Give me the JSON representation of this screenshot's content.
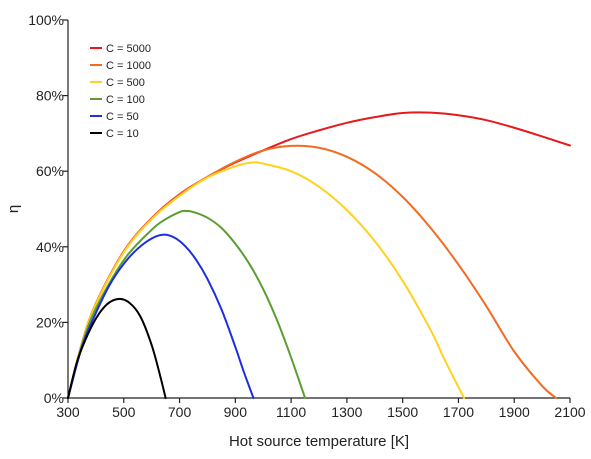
{
  "chart_data": {
    "type": "line",
    "title": "",
    "xlabel": "Hot source temperature [K]",
    "ylabel": "η",
    "xlim": [
      300,
      2100
    ],
    "ylim": [
      0,
      100
    ],
    "x_ticks": [
      "300",
      "500",
      "700",
      "900",
      "1100",
      "1300",
      "1500",
      "1700",
      "1900",
      "2100"
    ],
    "y_ticks": [
      "0%",
      "20%",
      "40%",
      "60%",
      "80%",
      "100%"
    ],
    "grid": false,
    "legend_position": "top-left",
    "series": [
      {
        "name": "C = 5000",
        "color": "#e8191d",
        "x": [
          300,
          350,
          400,
          500,
          600,
          700,
          800,
          900,
          1000,
          1100,
          1200,
          1300,
          1400,
          1500,
          1600,
          1700,
          1800,
          1900,
          2000,
          2100
        ],
        "y": [
          0,
          14.5,
          25,
          38.8,
          47.6,
          53.9,
          58.5,
          62.3,
          65.5,
          68.5,
          70.8,
          72.8,
          74.3,
          75.4,
          75.5,
          74.8,
          73.5,
          71.5,
          69.2,
          66.8
        ]
      },
      {
        "name": "C = 1000",
        "color": "#f26b21",
        "x": [
          300,
          350,
          400,
          500,
          600,
          700,
          800,
          900,
          1000,
          1100,
          1200,
          1300,
          1400,
          1500,
          1600,
          1700,
          1800,
          1900,
          2000,
          2050
        ],
        "y": [
          0,
          14.5,
          25,
          38.7,
          47.5,
          53.7,
          58.5,
          62.5,
          65.5,
          66.7,
          66.2,
          63.8,
          59.5,
          53.2,
          45.0,
          35.3,
          24.3,
          12.3,
          3.2,
          0
        ]
      },
      {
        "name": "C = 500",
        "color": "#ffd21f",
        "x": [
          300,
          350,
          400,
          500,
          600,
          700,
          800,
          900,
          960,
          1000,
          1100,
          1200,
          1300,
          1400,
          1500,
          1600,
          1650,
          1720
        ],
        "y": [
          0,
          14.4,
          24.8,
          38.5,
          47.3,
          53.5,
          58.3,
          61.3,
          62.3,
          62.0,
          60.0,
          55.9,
          49.7,
          41.5,
          31.0,
          18.0,
          10.2,
          0
        ]
      },
      {
        "name": "C = 100",
        "color": "#5a9e2f",
        "x": [
          300,
          350,
          400,
          500,
          600,
          650,
          700,
          720,
          750,
          800,
          850,
          900,
          950,
          1000,
          1050,
          1100,
          1150
        ],
        "y": [
          0,
          14.0,
          23.7,
          36.5,
          44.5,
          47.3,
          49.2,
          49.5,
          49.2,
          47.7,
          45.0,
          40.8,
          35.5,
          28.8,
          20.5,
          10.7,
          0
        ]
      },
      {
        "name": "C = 50",
        "color": "#1c2fe0",
        "x": [
          300,
          350,
          400,
          450,
          500,
          550,
          600,
          640,
          680,
          720,
          760,
          800,
          850,
          900,
          930,
          965
        ],
        "y": [
          0,
          13.5,
          22.5,
          30.0,
          35.5,
          39.5,
          42.2,
          43.2,
          42.5,
          40.2,
          36.5,
          31.5,
          23.5,
          13.5,
          7.0,
          0
        ]
      },
      {
        "name": "C = 10",
        "color": "#000000",
        "x": [
          300,
          330,
          360,
          400,
          440,
          480,
          520,
          560,
          600,
          630,
          650
        ],
        "y": [
          0,
          9.0,
          15.0,
          21.0,
          24.8,
          26.2,
          25.2,
          21.5,
          14.0,
          6.0,
          0
        ]
      }
    ]
  }
}
